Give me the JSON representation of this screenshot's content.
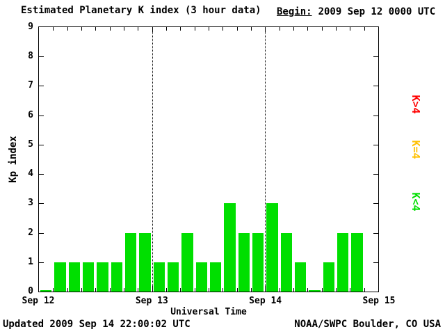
{
  "header": {
    "title": "Estimated Planetary K index (3 hour data)",
    "begin_label": "Begin:",
    "begin_value": "2009 Sep 12 0000 UTC"
  },
  "footer": {
    "updated": "Updated 2009 Sep 14 22:00:02 UTC",
    "source": "NOAA/SWPC Boulder, CO USA"
  },
  "legend": [
    {
      "label": "K>4",
      "color": "#ff0000"
    },
    {
      "label": "K=4",
      "color": "#ffc000"
    },
    {
      "label": "K<4",
      "color": "#00df00"
    }
  ],
  "chart_data": {
    "type": "bar",
    "title": "Estimated Planetary K index (3 hour data)",
    "xlabel": "Universal Time",
    "ylabel": "Kp index",
    "ylim": [
      0,
      9
    ],
    "y_ticks": [
      0,
      1,
      2,
      3,
      4,
      5,
      6,
      7,
      8,
      9
    ],
    "x_tick_labels": [
      "Sep 12",
      "Sep 13",
      "Sep 14",
      "Sep 15"
    ],
    "bar_interval_hours": 3,
    "bars_per_day": 8,
    "total_slots": 24,
    "grid": "dotted vertical lines at day boundaries Sep 13 and Sep 14",
    "legend_position": "right, rotated",
    "bar_colors": {
      "lt4": "#00df00",
      "eq4": "#ffc000",
      "gt4": "#ff0000"
    },
    "values": [
      0,
      1,
      1,
      1,
      1,
      1,
      2,
      2,
      1,
      1,
      2,
      1,
      1,
      3,
      2,
      2,
      3,
      2,
      1,
      0,
      1,
      2,
      2
    ]
  }
}
